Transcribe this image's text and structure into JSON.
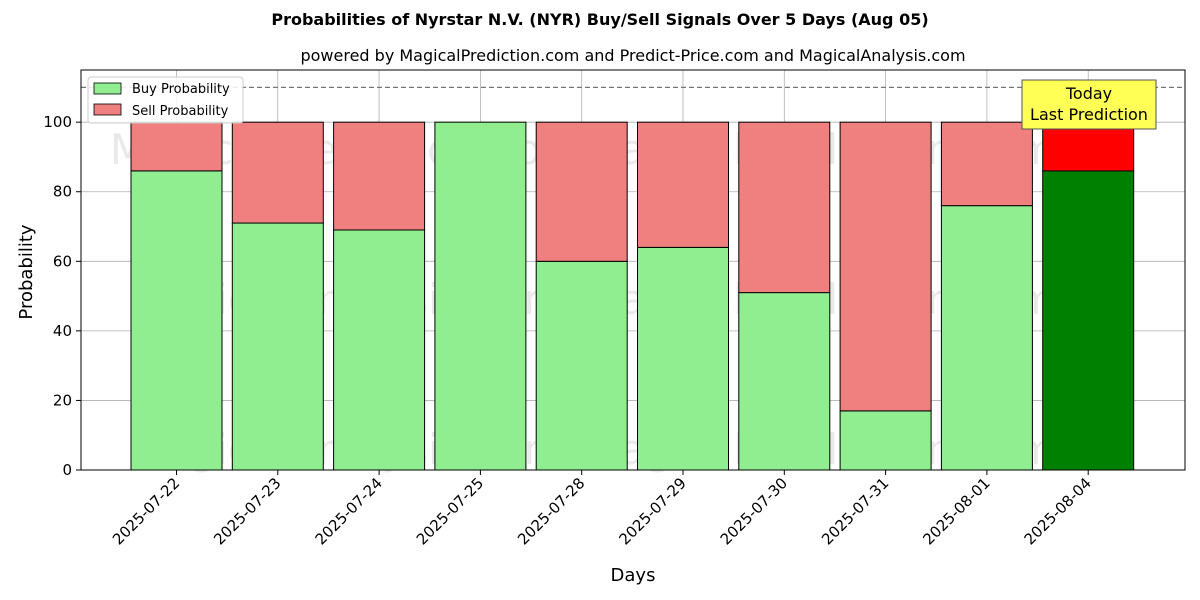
{
  "chart_data": {
    "type": "bar",
    "stacked": true,
    "title": "Probabilities of Nyrstar N.V. (NYR) Buy/Sell Signals Over 5 Days (Aug 05)",
    "subtitle": "powered by MagicalPrediction.com and Predict-Price.com and MagicalAnalysis.com",
    "xlabel": "Days",
    "ylabel": "Probability",
    "ylim": [
      0,
      115
    ],
    "yticks": [
      0,
      20,
      40,
      60,
      80,
      100
    ],
    "grid": true,
    "legend_position": "top-left",
    "reference_line": 110,
    "categories": [
      "2025-07-22",
      "2025-07-23",
      "2025-07-24",
      "2025-07-25",
      "2025-07-28",
      "2025-07-29",
      "2025-07-30",
      "2025-07-31",
      "2025-08-01",
      "2025-08-04"
    ],
    "series": [
      {
        "name": "Buy Probability",
        "values": [
          86,
          71,
          69,
          100,
          60,
          64,
          51,
          17,
          76,
          86
        ],
        "color": "#90ee90",
        "highlight_color": "#008000"
      },
      {
        "name": "Sell Probability",
        "values": [
          14,
          29,
          31,
          0,
          40,
          36,
          49,
          83,
          24,
          14
        ],
        "color": "#f08080",
        "highlight_color": "#ff0000"
      }
    ],
    "annotation": {
      "line1": "Today",
      "line2": "Last Prediction",
      "background": "#ffff55"
    },
    "watermarks": [
      "MagicalAnalysis.com",
      "MagicalPrediction.com"
    ]
  }
}
